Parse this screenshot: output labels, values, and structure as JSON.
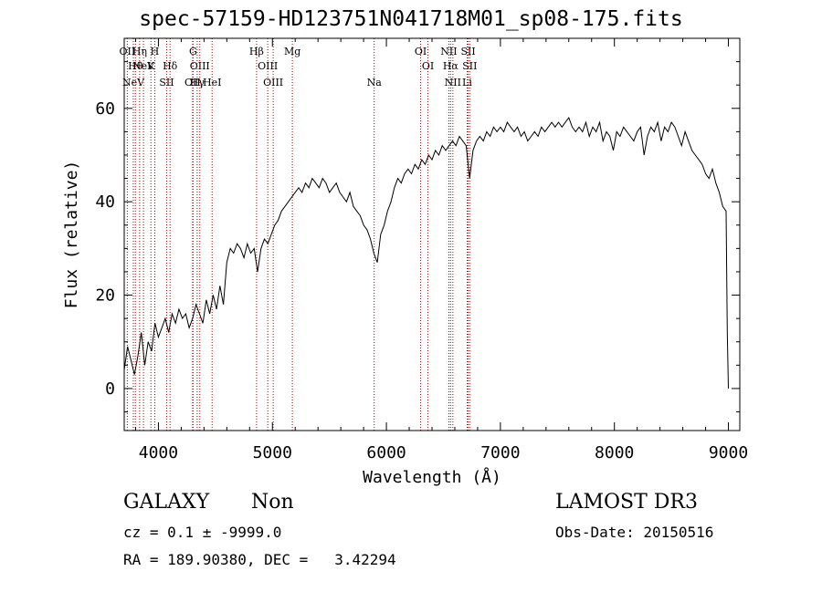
{
  "chart_data": {
    "type": "line",
    "title": "spec-57159-HD123751N041718M01_sp08-175.fits",
    "xlabel": "Wavelength (Å)",
    "ylabel": "Flux (relative)",
    "xlim": [
      3700,
      9100
    ],
    "ylim": [
      -9,
      75
    ],
    "xticks": [
      4000,
      5000,
      6000,
      7000,
      8000,
      9000
    ],
    "yticks": [
      0,
      20,
      40,
      60
    ],
    "series": [
      {
        "name": "spectrum",
        "x": [
          3700,
          3730,
          3760,
          3790,
          3820,
          3850,
          3880,
          3910,
          3940,
          3970,
          4000,
          4030,
          4060,
          4090,
          4120,
          4150,
          4180,
          4210,
          4240,
          4270,
          4300,
          4330,
          4360,
          4390,
          4420,
          4450,
          4480,
          4510,
          4540,
          4570,
          4600,
          4630,
          4660,
          4690,
          4720,
          4750,
          4780,
          4810,
          4840,
          4870,
          4900,
          4930,
          4960,
          4990,
          5020,
          5050,
          5080,
          5110,
          5140,
          5170,
          5200,
          5230,
          5260,
          5290,
          5320,
          5350,
          5380,
          5410,
          5440,
          5470,
          5500,
          5530,
          5560,
          5590,
          5620,
          5650,
          5680,
          5710,
          5740,
          5770,
          5800,
          5830,
          5860,
          5890,
          5920,
          5950,
          5980,
          6010,
          6040,
          6070,
          6100,
          6130,
          6160,
          6190,
          6220,
          6250,
          6280,
          6310,
          6340,
          6370,
          6400,
          6430,
          6460,
          6490,
          6520,
          6550,
          6580,
          6610,
          6640,
          6670,
          6700,
          6730,
          6760,
          6790,
          6820,
          6850,
          6880,
          6910,
          6940,
          6970,
          7000,
          7030,
          7060,
          7090,
          7120,
          7150,
          7180,
          7210,
          7240,
          7270,
          7300,
          7330,
          7360,
          7390,
          7420,
          7450,
          7480,
          7510,
          7540,
          7570,
          7600,
          7630,
          7660,
          7690,
          7720,
          7750,
          7780,
          7810,
          7840,
          7870,
          7900,
          7930,
          7960,
          7990,
          8020,
          8050,
          8080,
          8110,
          8140,
          8170,
          8200,
          8230,
          8260,
          8290,
          8320,
          8350,
          8380,
          8410,
          8440,
          8470,
          8500,
          8530,
          8560,
          8590,
          8620,
          8650,
          8680,
          8710,
          8740,
          8770,
          8800,
          8830,
          8860,
          8890,
          8920,
          8950,
          8980,
          8990,
          9000
        ],
        "values": [
          4,
          9,
          6,
          3,
          7,
          12,
          5,
          10,
          8,
          14,
          11,
          13,
          15,
          12,
          16,
          14,
          17,
          15,
          16,
          13,
          15,
          18,
          16,
          14,
          19,
          16,
          20,
          17,
          22,
          18,
          27,
          30,
          29,
          31,
          30,
          28,
          31,
          29,
          30,
          25,
          30,
          32,
          31,
          33,
          35,
          36,
          38,
          39,
          40,
          41,
          42,
          43,
          42,
          44,
          43,
          45,
          44,
          43,
          45,
          44,
          42,
          43,
          44,
          42,
          41,
          40,
          42,
          39,
          38,
          37,
          35,
          34,
          32,
          29,
          27,
          33,
          35,
          38,
          40,
          43,
          45,
          44,
          46,
          47,
          46,
          48,
          47,
          49,
          48,
          50,
          49,
          51,
          50,
          52,
          51,
          52,
          53,
          52,
          54,
          53,
          52,
          45,
          51,
          53,
          54,
          53,
          55,
          54,
          56,
          55,
          56,
          55,
          57,
          56,
          55,
          56,
          54,
          55,
          53,
          54,
          55,
          54,
          56,
          55,
          56,
          57,
          56,
          57,
          56,
          57,
          58,
          56,
          55,
          56,
          55,
          57,
          54,
          56,
          55,
          57,
          53,
          55,
          54,
          51,
          55,
          54,
          56,
          55,
          54,
          53,
          55,
          56,
          50,
          54,
          56,
          55,
          57,
          53,
          56,
          55,
          57,
          56,
          54,
          52,
          55,
          53,
          51,
          50,
          49,
          48,
          46,
          45,
          47,
          44,
          42,
          39,
          38,
          12,
          0
        ]
      }
    ],
    "emission_lines": [
      {
        "name": "NeV",
        "wavelength": 3869,
        "row": 1
      },
      {
        "name": "NeV",
        "wavelength": 3426,
        "row": 2
      },
      {
        "name": "OII",
        "wavelength": 3727,
        "row": 0
      },
      {
        "name": "OII",
        "wavelength": 4300,
        "row": 2
      },
      {
        "name": "Hη",
        "wavelength": 3835,
        "row": 0
      },
      {
        "name": "Hθ",
        "wavelength": 3798,
        "row": 1
      },
      {
        "name": "H",
        "wavelength": 3968,
        "row": 0
      },
      {
        "name": "K",
        "wavelength": 3934,
        "row": 1
      },
      {
        "name": "HeI",
        "wavelength": 4471,
        "row": 2
      },
      {
        "name": "Hδ",
        "wavelength": 4102,
        "row": 1
      },
      {
        "name": "SII",
        "wavelength": 4072,
        "row": 2
      },
      {
        "name": "G",
        "wavelength": 4304,
        "row": 0
      },
      {
        "name": "OIII",
        "wavelength": 4363,
        "row": 1
      },
      {
        "name": "Hγ",
        "wavelength": 4340,
        "row": 2
      },
      {
        "name": "Hβ",
        "wavelength": 4861,
        "row": 0
      },
      {
        "name": "OIII",
        "wavelength": 4959,
        "row": 1
      },
      {
        "name": "OIII",
        "wavelength": 5007,
        "row": 2
      },
      {
        "name": "Mg",
        "wavelength": 5175,
        "row": 0
      },
      {
        "name": "Na",
        "wavelength": 5893,
        "row": 2
      },
      {
        "name": "OI",
        "wavelength": 6300,
        "row": 0
      },
      {
        "name": "OI",
        "wavelength": 6364,
        "row": 1
      },
      {
        "name": "NII",
        "wavelength": 6548,
        "row": 0
      },
      {
        "name": "Hα",
        "wavelength": 6563,
        "row": 1
      },
      {
        "name": "NII",
        "wavelength": 6583,
        "row": 2
      },
      {
        "name": "SII",
        "wavelength": 6717,
        "row": 0
      },
      {
        "name": "SII",
        "wavelength": 6731,
        "row": 1
      },
      {
        "name": "Li",
        "wavelength": 6708,
        "row": 2
      }
    ]
  },
  "info": {
    "class": "GALAXY",
    "subclass": "Non",
    "survey": "LAMOST DR3",
    "cz": "cz = 0.1 ± -9999.0",
    "obs_date": "Obs-Date: 20150516",
    "radec": "RA = 189.90380, DEC =   3.42294"
  },
  "colors": {
    "line": "#000000",
    "marker": "#aa0000",
    "background": "#ffffff"
  }
}
